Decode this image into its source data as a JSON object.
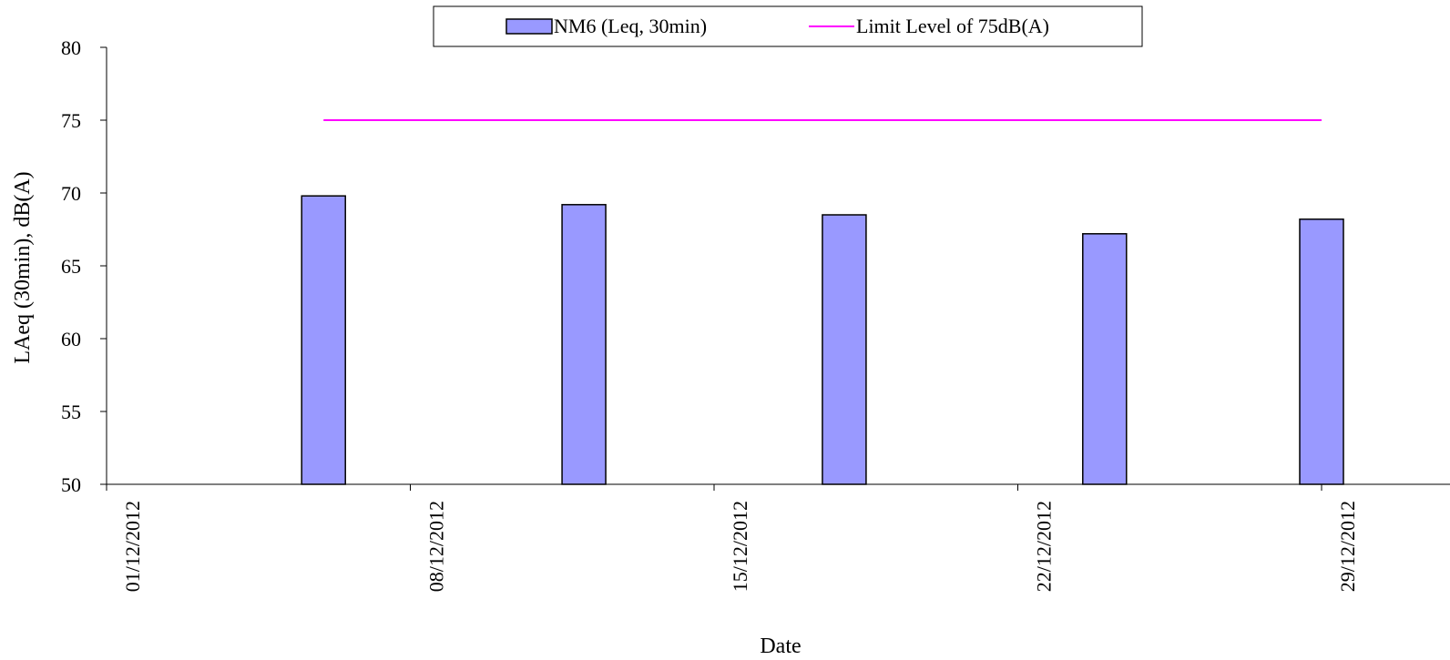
{
  "chart_data": {
    "type": "bar",
    "xlabel": "Date",
    "ylabel": "LAeq (30min), dB(A)",
    "ylim": [
      50,
      80
    ],
    "yticks": [
      50,
      55,
      60,
      65,
      70,
      75,
      80
    ],
    "x_tick_labels": [
      "01/12/2012",
      "08/12/2012",
      "15/12/2012",
      "22/12/2012",
      "29/12/2012"
    ],
    "x_range_days": [
      1,
      29
    ],
    "legend_position": "top",
    "series": [
      {
        "name": "NM6 (Leq, 30min)",
        "type": "bar",
        "color": "#9999ff",
        "points": [
          {
            "date": "06/12/2012",
            "value": 69.8
          },
          {
            "date": "12/12/2012",
            "value": 69.2
          },
          {
            "date": "18/12/2012",
            "value": 68.5
          },
          {
            "date": "24/12/2012",
            "value": 67.2
          },
          {
            "date": "29/12/2012",
            "value": 68.2
          }
        ]
      },
      {
        "name": "Limit Level of 75dB(A)",
        "type": "line",
        "color": "#ff00ff",
        "value": 75,
        "from_date": "06/12/2012",
        "to_date": "29/12/2012"
      }
    ]
  }
}
